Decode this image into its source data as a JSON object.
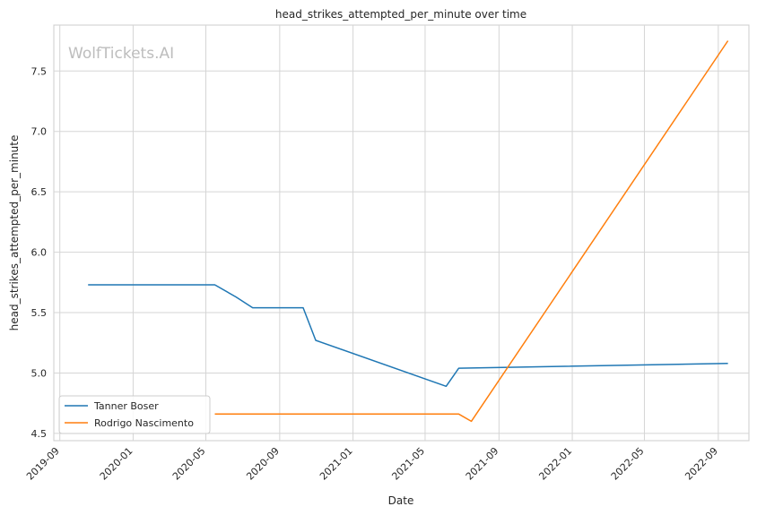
{
  "chart_data": {
    "type": "line",
    "title": "head_strikes_attempted_per_minute over time",
    "xlabel": "Date",
    "ylabel": "head_strikes_attempted_per_minute",
    "watermark": "WolfTickets.AI",
    "x_ticks": [
      "2019-09",
      "2020-01",
      "2020-05",
      "2020-09",
      "2021-01",
      "2021-05",
      "2021-09",
      "2022-01",
      "2022-05",
      "2022-09"
    ],
    "y_ticks": [
      "4.5",
      "5.0",
      "5.5",
      "6.0",
      "6.5",
      "7.0",
      "7.5"
    ],
    "xlim": [
      "2019-08-22",
      "2022-10-22"
    ],
    "ylim": [
      4.44,
      7.88
    ],
    "grid": true,
    "legend_position": "lower-left",
    "series": [
      {
        "name": "Tanner Boser",
        "color": "#1f77b4",
        "points": [
          {
            "x": "2019-10-18",
            "y": 5.73
          },
          {
            "x": "2020-05-16",
            "y": 5.73
          },
          {
            "x": "2020-06-20",
            "y": 5.63
          },
          {
            "x": "2020-07-18",
            "y": 5.54
          },
          {
            "x": "2020-10-10",
            "y": 5.54
          },
          {
            "x": "2020-10-31",
            "y": 5.27
          },
          {
            "x": "2021-06-05",
            "y": 4.89
          },
          {
            "x": "2021-06-26",
            "y": 5.04
          },
          {
            "x": "2022-09-17",
            "y": 5.08
          }
        ]
      },
      {
        "name": "Rodrigo Nascimento",
        "color": "#ff7f0e",
        "points": [
          {
            "x": "2020-05-16",
            "y": 4.66
          },
          {
            "x": "2021-06-26",
            "y": 4.66
          },
          {
            "x": "2021-07-17",
            "y": 4.6
          },
          {
            "x": "2022-09-17",
            "y": 7.75
          }
        ]
      }
    ]
  }
}
